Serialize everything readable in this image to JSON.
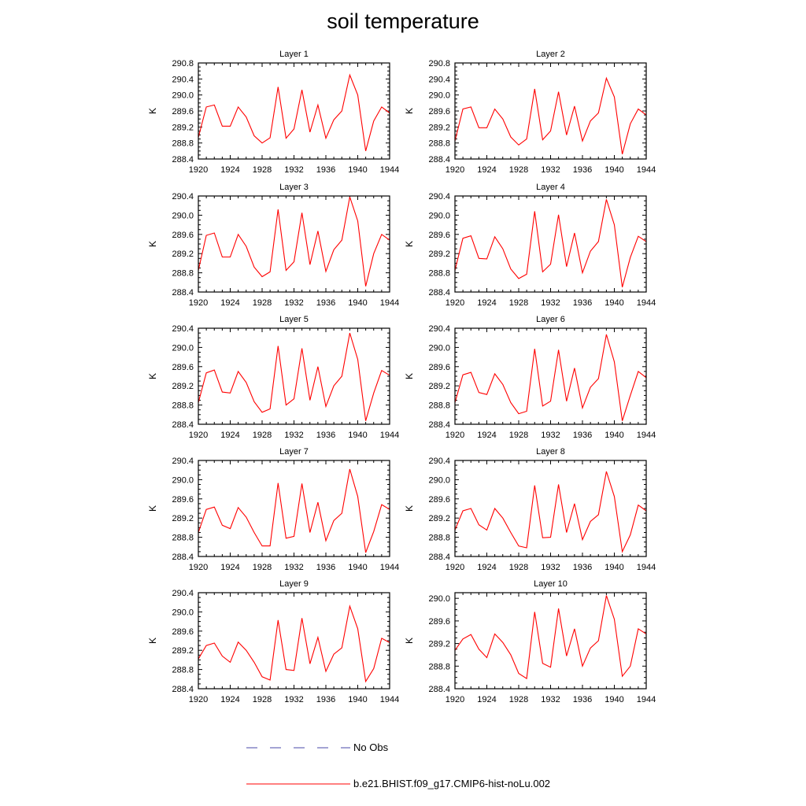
{
  "title": "soil temperature",
  "legend": [
    {
      "label": "No Obs",
      "color": "#4a4aa8",
      "style": "dashed"
    },
    {
      "label": "b.e21.BHIST.f09_g17.CMIP6-hist-noLu.002",
      "color": "#ff0000",
      "style": "solid"
    }
  ],
  "chart_data": [
    {
      "type": "line",
      "title": "Layer 1",
      "ylabel": "K",
      "ylim": [
        288.4,
        290.8
      ],
      "yticks": [
        "288.4",
        "288.8",
        "289.2",
        "289.6",
        "290.0",
        "290.4",
        "290.8"
      ],
      "xlim": [
        1920,
        1944
      ],
      "xticks": [
        "1920",
        "1924",
        "1928",
        "1932",
        "1936",
        "1940",
        "1944"
      ],
      "series": [
        {
          "color": "#ff0000",
          "x": [
            1920,
            1921,
            1922,
            1923,
            1924,
            1925,
            1926,
            1927,
            1928,
            1929,
            1930,
            1931,
            1932,
            1933,
            1934,
            1935,
            1936,
            1937,
            1938,
            1939,
            1940,
            1941,
            1942,
            1943,
            1944
          ],
          "values": [
            288.94,
            289.7,
            289.75,
            289.22,
            289.22,
            289.7,
            289.45,
            288.98,
            288.8,
            288.93,
            290.2,
            288.92,
            289.15,
            290.13,
            289.07,
            289.75,
            288.92,
            289.38,
            289.6,
            290.5,
            290.0,
            288.6,
            289.35,
            289.7,
            289.55
          ]
        }
      ]
    },
    {
      "type": "line",
      "title": "Layer 2",
      "ylabel": "K",
      "ylim": [
        288.4,
        290.8
      ],
      "yticks": [
        "288.4",
        "288.8",
        "289.2",
        "289.6",
        "290.0",
        "290.4",
        "290.8"
      ],
      "xlim": [
        1920,
        1944
      ],
      "xticks": [
        "1920",
        "1924",
        "1928",
        "1932",
        "1936",
        "1940",
        "1944"
      ],
      "series": [
        {
          "color": "#ff0000",
          "x": [
            1920,
            1921,
            1922,
            1923,
            1924,
            1925,
            1926,
            1927,
            1928,
            1929,
            1930,
            1931,
            1932,
            1933,
            1934,
            1935,
            1936,
            1937,
            1938,
            1939,
            1940,
            1941,
            1942,
            1943,
            1944
          ],
          "values": [
            288.85,
            289.65,
            289.7,
            289.18,
            289.18,
            289.65,
            289.4,
            288.95,
            288.75,
            288.9,
            290.15,
            288.88,
            289.1,
            290.08,
            289.0,
            289.72,
            288.85,
            289.35,
            289.55,
            290.42,
            289.95,
            288.52,
            289.28,
            289.65,
            289.5
          ]
        }
      ]
    },
    {
      "type": "line",
      "title": "Layer 3",
      "ylabel": "K",
      "ylim": [
        288.4,
        290.4
      ],
      "yticks": [
        "288.4",
        "288.8",
        "289.2",
        "289.6",
        "290.0",
        "290.4"
      ],
      "xlim": [
        1920,
        1944
      ],
      "xticks": [
        "1920",
        "1924",
        "1928",
        "1932",
        "1936",
        "1940",
        "1944"
      ],
      "series": [
        {
          "color": "#ff0000",
          "x": [
            1920,
            1921,
            1922,
            1923,
            1924,
            1925,
            1926,
            1927,
            1928,
            1929,
            1930,
            1931,
            1932,
            1933,
            1934,
            1935,
            1936,
            1937,
            1938,
            1939,
            1940,
            1941,
            1942,
            1943,
            1944
          ],
          "values": [
            288.85,
            289.58,
            289.63,
            289.13,
            289.13,
            289.6,
            289.35,
            288.92,
            288.72,
            288.82,
            290.12,
            288.85,
            289.03,
            290.05,
            288.97,
            289.67,
            288.83,
            289.28,
            289.48,
            290.38,
            289.88,
            288.52,
            289.2,
            289.6,
            289.48
          ]
        }
      ]
    },
    {
      "type": "line",
      "title": "Layer 4",
      "ylabel": "K",
      "ylim": [
        288.4,
        290.4
      ],
      "yticks": [
        "288.4",
        "288.8",
        "289.2",
        "289.6",
        "290.0",
        "290.4"
      ],
      "xlim": [
        1920,
        1944
      ],
      "xticks": [
        "1920",
        "1924",
        "1928",
        "1932",
        "1936",
        "1940",
        "1944"
      ],
      "series": [
        {
          "color": "#ff0000",
          "x": [
            1920,
            1921,
            1922,
            1923,
            1924,
            1925,
            1926,
            1927,
            1928,
            1929,
            1930,
            1931,
            1932,
            1933,
            1934,
            1935,
            1936,
            1937,
            1938,
            1939,
            1940,
            1941,
            1942,
            1943,
            1944
          ],
          "values": [
            288.85,
            289.52,
            289.57,
            289.1,
            289.09,
            289.55,
            289.3,
            288.88,
            288.68,
            288.77,
            290.08,
            288.82,
            288.98,
            290.01,
            288.93,
            289.63,
            288.8,
            289.25,
            289.45,
            290.33,
            289.8,
            288.5,
            289.12,
            289.56,
            289.45
          ]
        }
      ]
    },
    {
      "type": "line",
      "title": "Layer 5",
      "ylabel": "K",
      "ylim": [
        288.4,
        290.4
      ],
      "yticks": [
        "288.4",
        "288.8",
        "289.2",
        "289.6",
        "290.0",
        "290.4"
      ],
      "xlim": [
        1920,
        1944
      ],
      "xticks": [
        "1920",
        "1924",
        "1928",
        "1932",
        "1936",
        "1940",
        "1944"
      ],
      "series": [
        {
          "color": "#ff0000",
          "x": [
            1920,
            1921,
            1922,
            1923,
            1924,
            1925,
            1926,
            1927,
            1928,
            1929,
            1930,
            1931,
            1932,
            1933,
            1934,
            1935,
            1936,
            1937,
            1938,
            1939,
            1940,
            1941,
            1942,
            1943,
            1944
          ],
          "values": [
            288.85,
            289.47,
            289.53,
            289.07,
            289.05,
            289.5,
            289.27,
            288.87,
            288.65,
            288.72,
            290.03,
            288.8,
            288.93,
            289.98,
            288.9,
            289.6,
            288.77,
            289.2,
            289.4,
            290.3,
            289.75,
            288.47,
            289.05,
            289.52,
            289.42
          ]
        }
      ]
    },
    {
      "type": "line",
      "title": "Layer 6",
      "ylabel": "K",
      "ylim": [
        288.4,
        290.4
      ],
      "yticks": [
        "288.4",
        "288.8",
        "289.2",
        "289.6",
        "290.0",
        "290.4"
      ],
      "xlim": [
        1920,
        1944
      ],
      "xticks": [
        "1920",
        "1924",
        "1928",
        "1932",
        "1936",
        "1940",
        "1944"
      ],
      "series": [
        {
          "color": "#ff0000",
          "x": [
            1920,
            1921,
            1922,
            1923,
            1924,
            1925,
            1926,
            1927,
            1928,
            1929,
            1930,
            1931,
            1932,
            1933,
            1934,
            1935,
            1936,
            1937,
            1938,
            1939,
            1940,
            1941,
            1942,
            1943,
            1944
          ],
          "values": [
            288.85,
            289.43,
            289.48,
            289.06,
            289.02,
            289.45,
            289.23,
            288.85,
            288.62,
            288.67,
            289.97,
            288.78,
            288.88,
            289.95,
            288.88,
            289.57,
            288.74,
            289.17,
            289.35,
            290.27,
            289.7,
            288.47,
            289.0,
            289.5,
            289.37
          ]
        }
      ]
    },
    {
      "type": "line",
      "title": "Layer 7",
      "ylabel": "K",
      "ylim": [
        288.4,
        290.4
      ],
      "yticks": [
        "288.4",
        "288.8",
        "289.2",
        "289.6",
        "290.0",
        "290.4"
      ],
      "xlim": [
        1920,
        1944
      ],
      "xticks": [
        "1920",
        "1924",
        "1928",
        "1932",
        "1936",
        "1940",
        "1944"
      ],
      "series": [
        {
          "color": "#ff0000",
          "x": [
            1920,
            1921,
            1922,
            1923,
            1924,
            1925,
            1926,
            1927,
            1928,
            1929,
            1930,
            1931,
            1932,
            1933,
            1934,
            1935,
            1936,
            1937,
            1938,
            1939,
            1940,
            1941,
            1942,
            1943,
            1944
          ],
          "values": [
            288.9,
            289.38,
            289.43,
            289.05,
            288.98,
            289.42,
            289.22,
            288.9,
            288.62,
            288.62,
            289.93,
            288.78,
            288.82,
            289.92,
            288.9,
            289.53,
            288.73,
            289.15,
            289.3,
            290.22,
            289.65,
            288.48,
            288.92,
            289.48,
            289.38
          ]
        }
      ]
    },
    {
      "type": "line",
      "title": "Layer 8",
      "ylabel": "K",
      "ylim": [
        288.4,
        290.4
      ],
      "yticks": [
        "288.4",
        "288.8",
        "289.2",
        "289.6",
        "290.0",
        "290.4"
      ],
      "xlim": [
        1920,
        1944
      ],
      "xticks": [
        "1920",
        "1924",
        "1928",
        "1932",
        "1936",
        "1940",
        "1944"
      ],
      "series": [
        {
          "color": "#ff0000",
          "x": [
            1920,
            1921,
            1922,
            1923,
            1924,
            1925,
            1926,
            1927,
            1928,
            1929,
            1930,
            1931,
            1932,
            1933,
            1934,
            1935,
            1936,
            1937,
            1938,
            1939,
            1940,
            1941,
            1942,
            1943,
            1944
          ],
          "values": [
            288.95,
            289.35,
            289.4,
            289.06,
            288.95,
            289.4,
            289.2,
            288.9,
            288.62,
            288.58,
            289.88,
            288.79,
            288.8,
            289.9,
            288.9,
            289.5,
            288.75,
            289.13,
            289.27,
            290.17,
            289.65,
            288.5,
            288.85,
            289.47,
            289.35
          ]
        }
      ]
    },
    {
      "type": "line",
      "title": "Layer 9",
      "ylabel": "K",
      "ylim": [
        288.4,
        290.4
      ],
      "yticks": [
        "288.4",
        "288.8",
        "289.2",
        "289.6",
        "290.0",
        "290.4"
      ],
      "xlim": [
        1920,
        1944
      ],
      "xticks": [
        "1920",
        "1924",
        "1928",
        "1932",
        "1936",
        "1940",
        "1944"
      ],
      "series": [
        {
          "color": "#ff0000",
          "x": [
            1920,
            1921,
            1922,
            1923,
            1924,
            1925,
            1926,
            1927,
            1928,
            1929,
            1930,
            1931,
            1932,
            1933,
            1934,
            1935,
            1936,
            1937,
            1938,
            1939,
            1940,
            1941,
            1942,
            1943,
            1944
          ],
          "values": [
            289.02,
            289.3,
            289.35,
            289.08,
            288.95,
            289.37,
            289.2,
            288.95,
            288.65,
            288.58,
            289.83,
            288.8,
            288.78,
            289.87,
            288.92,
            289.47,
            288.76,
            289.12,
            289.25,
            290.12,
            289.65,
            288.55,
            288.82,
            289.45,
            289.36
          ]
        }
      ]
    },
    {
      "type": "line",
      "title": "Layer 10",
      "ylabel": "K",
      "ylim": [
        288.4,
        290.1
      ],
      "yticks": [
        "288.4",
        "288.8",
        "289.2",
        "289.6",
        "290.0"
      ],
      "xlim": [
        1920,
        1944
      ],
      "xticks": [
        "1920",
        "1924",
        "1928",
        "1932",
        "1936",
        "1940",
        "1944"
      ],
      "series": [
        {
          "color": "#ff0000",
          "x": [
            1920,
            1921,
            1922,
            1923,
            1924,
            1925,
            1926,
            1927,
            1928,
            1929,
            1930,
            1931,
            1932,
            1933,
            1934,
            1935,
            1936,
            1937,
            1938,
            1939,
            1940,
            1941,
            1942,
            1943,
            1944
          ],
          "values": [
            289.08,
            289.28,
            289.36,
            289.1,
            288.95,
            289.37,
            289.22,
            289.0,
            288.67,
            288.58,
            289.76,
            288.85,
            288.78,
            289.82,
            288.98,
            289.46,
            288.8,
            289.12,
            289.25,
            290.05,
            289.63,
            288.62,
            288.8,
            289.46,
            289.37
          ]
        }
      ]
    }
  ]
}
